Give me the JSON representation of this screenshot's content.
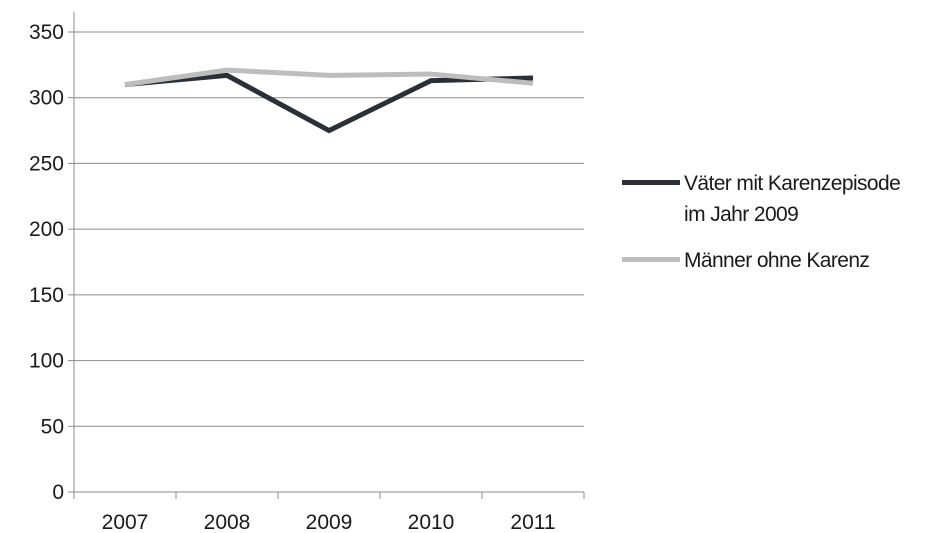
{
  "chart_data": {
    "type": "line",
    "categories": [
      "2007",
      "2008",
      "2009",
      "2010",
      "2011"
    ],
    "ylim": [
      0,
      350
    ],
    "yticks": [
      0,
      50,
      100,
      150,
      200,
      250,
      300,
      350
    ],
    "grid": true,
    "legend_position": "right",
    "series": [
      {
        "name": "Väter mit Karenzepisode im Jahr 2009",
        "values": [
          310,
          317,
          275,
          313,
          315
        ],
        "color": "#2b2f36"
      },
      {
        "name": "Männer ohne Karenz",
        "values": [
          310,
          321,
          317,
          318,
          311
        ],
        "color": "#bdbdbd"
      }
    ]
  }
}
